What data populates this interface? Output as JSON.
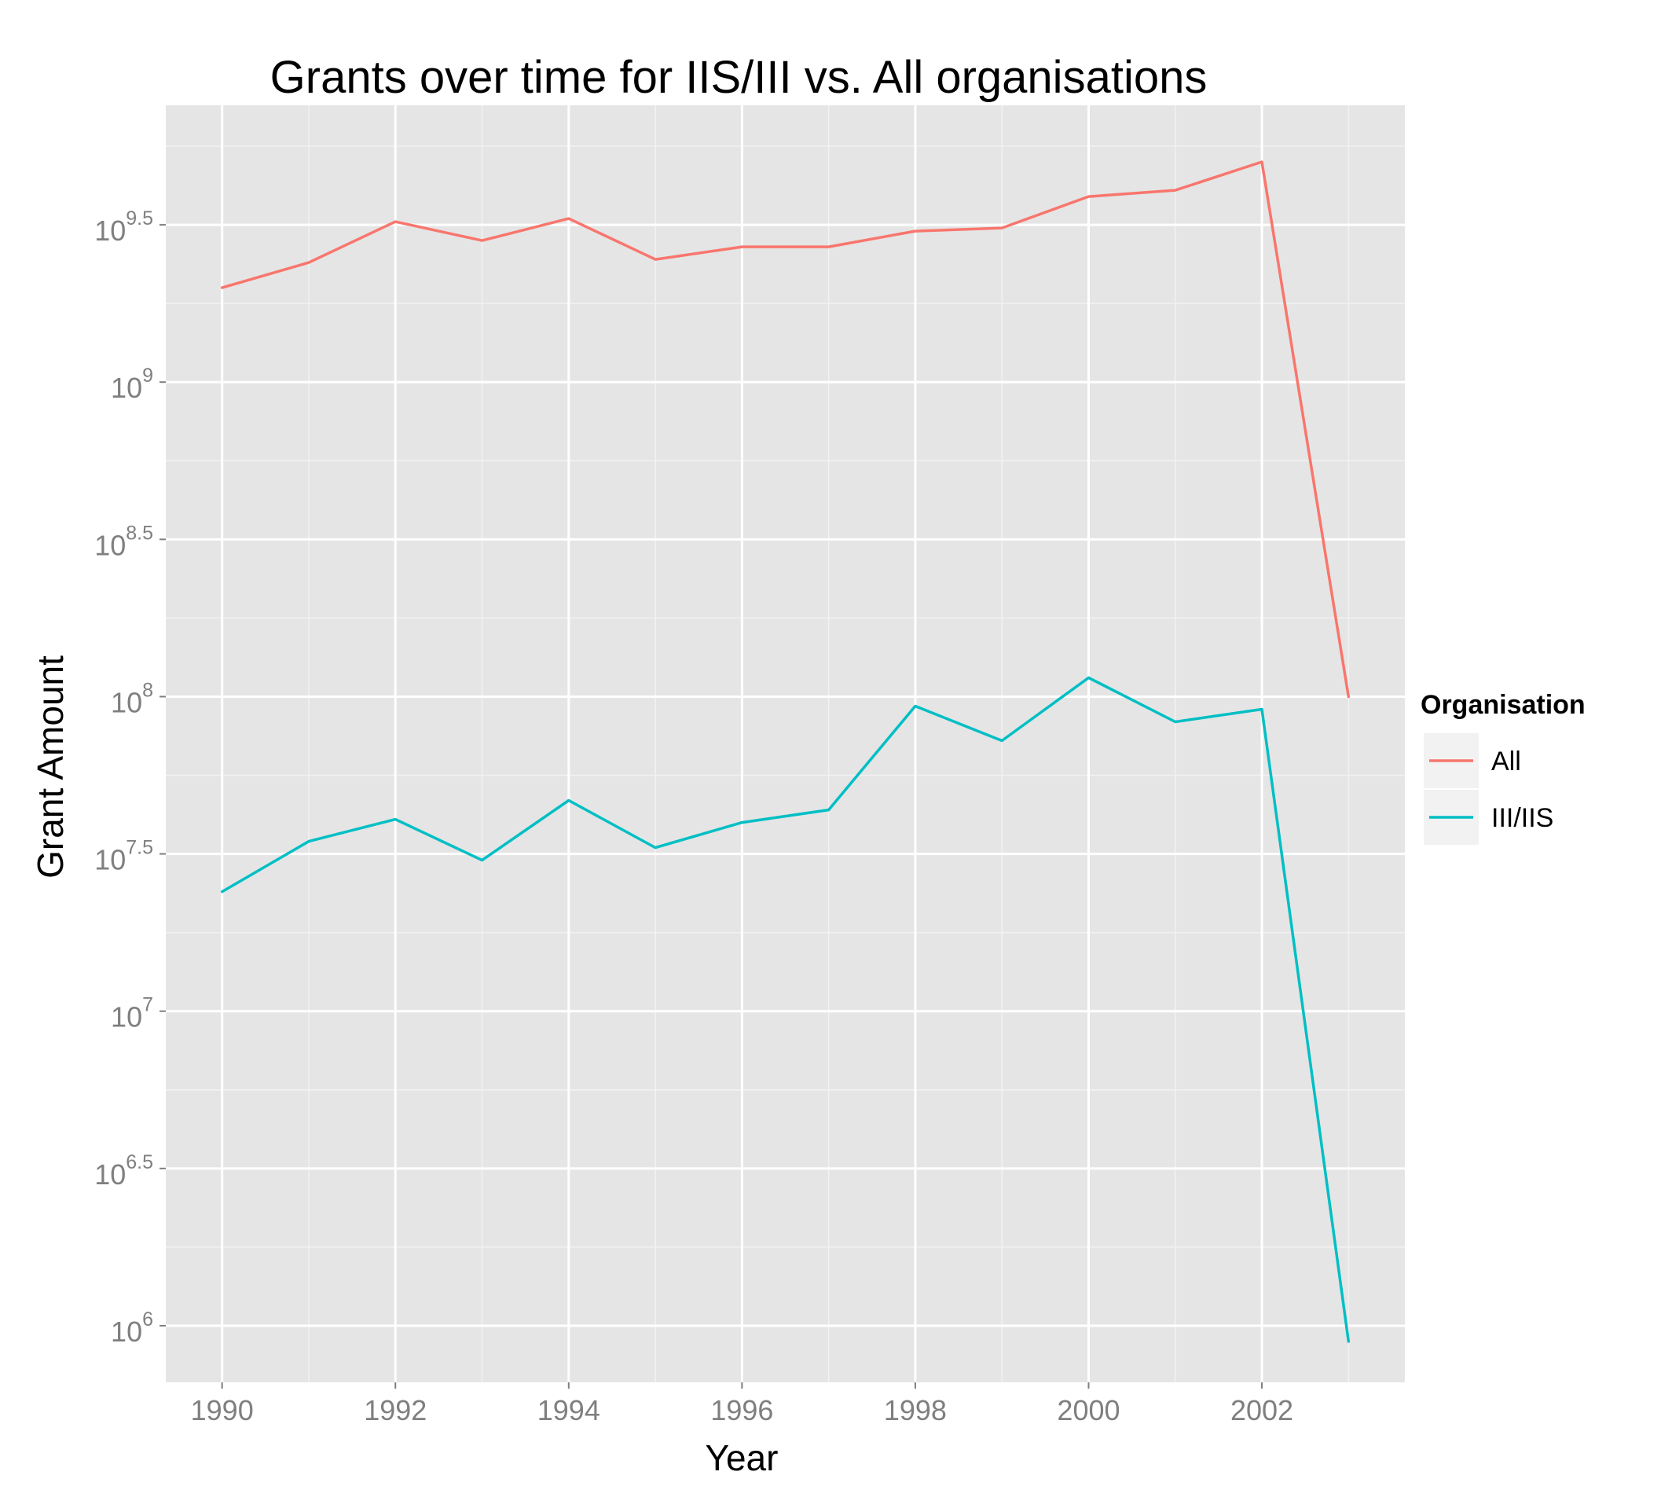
{
  "chart_data": {
    "type": "line",
    "title": "Grants over time for IIS/III vs. All organisations",
    "xlabel": "Year",
    "ylabel": "Grant Amount",
    "x": [
      1990,
      1991,
      1992,
      1993,
      1994,
      1995,
      1996,
      1997,
      1998,
      1999,
      2000,
      2001,
      2002,
      2003
    ],
    "xlim": [
      1989.35,
      2003.65
    ],
    "x_ticks": [
      1990,
      1992,
      1994,
      1996,
      1998,
      2000,
      2002
    ],
    "x_tick_labels": [
      "1990",
      "1992",
      "1994",
      "1996",
      "1998",
      "2000",
      "2002"
    ],
    "y_scale": "log10",
    "ylim": [
      5.82,
      9.88
    ],
    "y_ticks": [
      {
        "exponent": 6,
        "base": "10",
        "power": "6"
      },
      {
        "exponent": 6.5,
        "base": "10",
        "power": "6.5"
      },
      {
        "exponent": 7,
        "base": "10",
        "power": "7"
      },
      {
        "exponent": 7.5,
        "base": "10",
        "power": "7.5"
      },
      {
        "exponent": 8,
        "base": "10",
        "power": "8"
      },
      {
        "exponent": 8.5,
        "base": "10",
        "power": "8.5"
      },
      {
        "exponent": 9,
        "base": "10",
        "power": "9"
      },
      {
        "exponent": 9.5,
        "base": "10",
        "power": "9.5"
      }
    ],
    "grid": true,
    "legend": {
      "title": "Organisation",
      "position": "right"
    },
    "series": [
      {
        "name": "All",
        "color": "#F8766D",
        "values": [
          9.3,
          9.38,
          9.51,
          9.45,
          9.52,
          9.39,
          9.43,
          9.43,
          9.48,
          9.49,
          9.59,
          9.61,
          9.7,
          8.0
        ],
        "value_encoding": "log10 of grant amount"
      },
      {
        "name": "III/IIS",
        "color": "#00BFC4",
        "values": [
          7.38,
          7.54,
          7.61,
          7.48,
          7.67,
          7.52,
          7.6,
          7.64,
          7.97,
          7.86,
          8.06,
          7.92,
          7.96,
          5.95
        ],
        "value_encoding": "log10 of grant amount"
      }
    ]
  }
}
